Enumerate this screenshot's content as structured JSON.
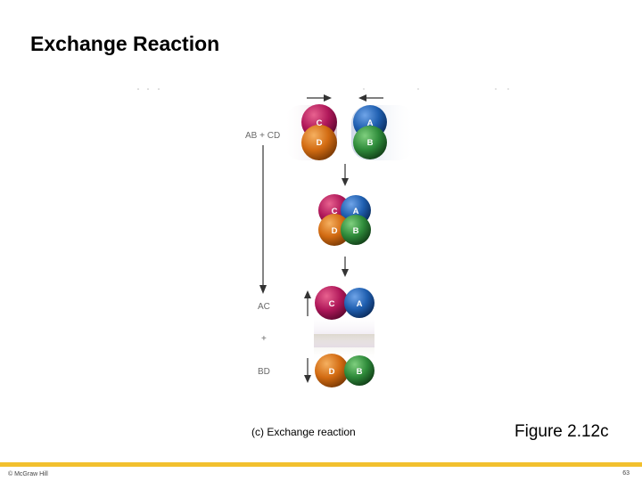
{
  "slide": {
    "title": "Exchange Reaction",
    "caption": "(c) Exchange reaction",
    "figure_ref": "Figure 2.12c",
    "copyright": "© McGraw Hill",
    "page_number": "63"
  },
  "diagram": {
    "reactant_label": "AB + CD",
    "product_label_1": "AC",
    "plus_label": "+",
    "product_label_2": "BD",
    "atoms": {
      "A": "A",
      "B": "B",
      "C": "C",
      "D": "D"
    },
    "colors": {
      "A": "#1f5fb0",
      "B": "#2e8b3a",
      "C": "#b0185a",
      "D": "#d26b12",
      "accent_bar": "#f2c02e"
    }
  }
}
